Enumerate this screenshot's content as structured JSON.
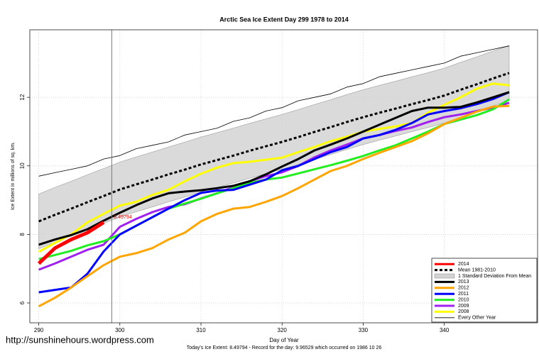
{
  "chart_data": {
    "type": "line",
    "title": "Arctic Sea Ice Extent Day 299 1978 to 2014",
    "x_label": "Day of Year",
    "y_label": "Ice Extent in millions of sq. km.",
    "footer": "Today's Ice Extent: 8.49794  - Record for the day: 9.96529 which occurred on 1986 10 26",
    "watermark": "http://sunshinehours.wordpress.com",
    "annotation": "8.49794",
    "vline": 299,
    "xlim": [
      288.9,
      351.5
    ],
    "ylim": [
      5.42,
      13.97
    ],
    "xticks": [
      290,
      300,
      310,
      320,
      330,
      340
    ],
    "yticks": [
      6,
      8,
      10,
      12
    ],
    "grid": true,
    "legend": "bottom right",
    "x": [
      290,
      292,
      294,
      296,
      298,
      300,
      302,
      304,
      306,
      308,
      310,
      312,
      314,
      316,
      318,
      320,
      322,
      324,
      326,
      328,
      330,
      332,
      334,
      336,
      338,
      340,
      342,
      344,
      346,
      348
    ],
    "series": [
      {
        "name": "2014",
        "color": "#ff0000",
        "width": 5,
        "values": [
          7.15,
          7.6,
          7.85,
          8.05,
          8.35,
          null,
          null,
          null,
          null,
          null,
          null,
          null,
          null,
          null,
          null,
          null,
          null,
          null,
          null,
          null,
          null,
          null,
          null,
          null,
          null,
          null,
          null,
          null,
          null,
          null
        ]
      },
      {
        "name": "Mean 1981-2010",
        "color": "#000000",
        "width": 3,
        "dash": true,
        "values": [
          8.38,
          8.57,
          8.75,
          8.94,
          9.12,
          9.31,
          9.46,
          9.6,
          9.75,
          9.89,
          10.04,
          10.17,
          10.3,
          10.44,
          10.57,
          10.7,
          10.84,
          10.99,
          11.13,
          11.28,
          11.42,
          11.55,
          11.67,
          11.8,
          11.92,
          12.05,
          12.22,
          12.38,
          12.55,
          12.71
        ]
      },
      {
        "name": "1 Standard Deviation From Mean",
        "color": "#d3d3d3",
        "upper": [
          9.18,
          9.37,
          9.55,
          9.74,
          9.92,
          10.11,
          10.26,
          10.4,
          10.55,
          10.69,
          10.84,
          10.97,
          11.1,
          11.24,
          11.37,
          11.5,
          11.64,
          11.79,
          11.93,
          12.08,
          12.22,
          12.35,
          12.47,
          12.6,
          12.72,
          12.85,
          13.02,
          13.18,
          13.35,
          13.51
        ],
        "lower": [
          7.58,
          7.77,
          7.95,
          8.14,
          8.32,
          8.51,
          8.66,
          8.8,
          8.95,
          9.09,
          9.24,
          9.37,
          9.5,
          9.64,
          9.77,
          9.9,
          10.04,
          10.19,
          10.33,
          10.48,
          10.62,
          10.75,
          10.87,
          11.0,
          11.12,
          11.25,
          11.42,
          11.58,
          11.75,
          11.91
        ]
      },
      {
        "name": "2013",
        "color": "#000000",
        "width": 3,
        "values": [
          7.7,
          7.85,
          7.98,
          8.15,
          8.4,
          8.63,
          8.85,
          9.05,
          9.2,
          9.25,
          9.29,
          9.35,
          9.42,
          9.55,
          9.75,
          9.98,
          10.2,
          10.45,
          10.62,
          10.8,
          11.0,
          11.2,
          11.4,
          11.6,
          11.7,
          11.7,
          11.72,
          11.85,
          12.0,
          12.15
        ]
      },
      {
        "name": "2012",
        "color": "#ffa500",
        "width": 3,
        "values": [
          5.9,
          6.15,
          6.45,
          6.78,
          7.1,
          7.35,
          7.45,
          7.6,
          7.85,
          8.05,
          8.38,
          8.6,
          8.75,
          8.8,
          8.95,
          9.12,
          9.35,
          9.6,
          9.85,
          10.0,
          10.2,
          10.38,
          10.55,
          10.72,
          10.95,
          11.22,
          11.4,
          11.58,
          11.73,
          11.75
        ]
      },
      {
        "name": "2011",
        "color": "#0000ff",
        "width": 3,
        "values": [
          6.31,
          6.38,
          6.45,
          6.85,
          7.5,
          8.0,
          8.25,
          8.5,
          8.75,
          9.0,
          9.21,
          9.28,
          9.3,
          9.45,
          9.6,
          9.87,
          10.0,
          10.2,
          10.4,
          10.55,
          10.8,
          10.9,
          11.05,
          11.25,
          11.5,
          11.6,
          11.68,
          11.8,
          11.95,
          12.15
        ]
      },
      {
        "name": "2010",
        "color": "#22ee22",
        "width": 3,
        "values": [
          7.28,
          7.4,
          7.52,
          7.68,
          7.8,
          8.0,
          8.25,
          8.5,
          8.75,
          8.9,
          9.04,
          9.2,
          9.35,
          9.5,
          9.6,
          9.66,
          9.78,
          9.9,
          10.02,
          10.15,
          10.29,
          10.45,
          10.6,
          10.8,
          11.0,
          11.22,
          11.35,
          11.48,
          11.65,
          11.94
        ]
      },
      {
        "name": "2009",
        "color": "#a020f0",
        "width": 3,
        "values": [
          6.97,
          7.15,
          7.35,
          7.55,
          7.7,
          8.22,
          8.45,
          8.65,
          8.8,
          8.88,
          9.05,
          9.2,
          9.38,
          9.55,
          9.7,
          9.81,
          10.0,
          10.25,
          10.45,
          10.62,
          10.8,
          10.9,
          11.02,
          11.12,
          11.28,
          11.42,
          11.5,
          11.6,
          11.7,
          11.84
        ]
      },
      {
        "name": "2008",
        "color": "#ffff00",
        "width": 3,
        "values": [
          7.49,
          7.75,
          8.0,
          8.35,
          8.6,
          8.84,
          8.95,
          9.15,
          9.3,
          9.55,
          9.77,
          9.95,
          10.08,
          10.12,
          10.18,
          10.24,
          10.4,
          10.55,
          10.72,
          10.85,
          11.0,
          11.08,
          11.15,
          11.25,
          11.55,
          11.78,
          12.0,
          12.25,
          12.4,
          12.35
        ]
      },
      {
        "name": "Every Other Year",
        "color": "#000000",
        "width": 0.8,
        "values": [
          9.7,
          9.8,
          9.9,
          10.0,
          10.2,
          10.3,
          10.5,
          10.6,
          10.7,
          10.9,
          11.0,
          11.1,
          11.3,
          11.4,
          11.6,
          11.7,
          11.9,
          12.0,
          12.1,
          12.3,
          12.4,
          12.6,
          12.7,
          12.8,
          12.9,
          13.0,
          13.2,
          13.3,
          13.4,
          13.5
        ]
      }
    ]
  }
}
